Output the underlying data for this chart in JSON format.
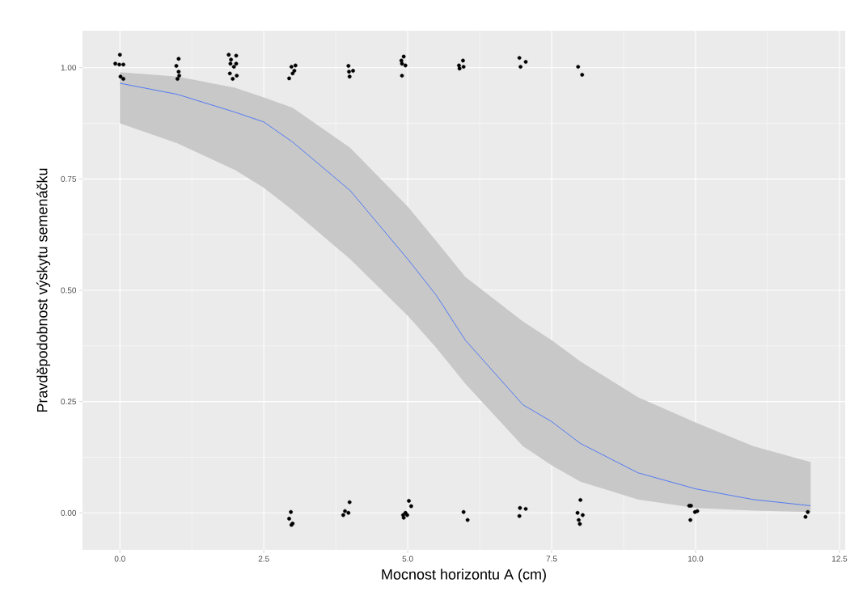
{
  "chart_data": {
    "type": "scatter",
    "xlabel": "Mocnost horizontu A (cm)",
    "ylabel": "Pravděpodobnost výskytu semenáčku",
    "xlim": [
      -0.65,
      12.6
    ],
    "ylim": [
      -0.083,
      1.083
    ],
    "xticks": [
      {
        "value": 0,
        "label": "0.0"
      },
      {
        "value": 2.5,
        "label": "2.5"
      },
      {
        "value": 5,
        "label": "5.0"
      },
      {
        "value": 7.5,
        "label": "7.5"
      },
      {
        "value": 10,
        "label": "10.0"
      },
      {
        "value": 12.5,
        "label": "12.5"
      }
    ],
    "yticks": [
      {
        "value": 0,
        "label": "0.00"
      },
      {
        "value": 0.25,
        "label": "0.25"
      },
      {
        "value": 0.5,
        "label": "0.50"
      },
      {
        "value": 0.75,
        "label": "0.75"
      },
      {
        "value": 1,
        "label": "1.00"
      }
    ],
    "grid": true,
    "series": [
      {
        "type": "line",
        "color": "#3366ff",
        "marker": "none",
        "x": [
          0,
          1,
          2,
          2.5,
          3,
          4,
          5,
          5.5,
          6,
          7,
          7.5,
          8,
          9,
          10,
          11,
          12
        ],
        "values": [
          0.965,
          0.94,
          0.9,
          0.878,
          0.833,
          0.724,
          0.57,
          0.488,
          0.388,
          0.243,
          0.205,
          0.156,
          0.09,
          0.054,
          0.03,
          0.016
        ],
        "lower": [
          0.875,
          0.83,
          0.77,
          0.73,
          0.68,
          0.57,
          0.443,
          0.37,
          0.29,
          0.15,
          0.107,
          0.07,
          0.03,
          0.011,
          0.005,
          0.002
        ],
        "upper": [
          0.99,
          0.98,
          0.955,
          0.933,
          0.91,
          0.82,
          0.688,
          0.61,
          0.53,
          0.43,
          0.388,
          0.34,
          0.26,
          0.203,
          0.15,
          0.114
        ]
      },
      {
        "color": "#000000",
        "marker": "circle",
        "x": [
          0.0,
          -0.08,
          -0.01,
          0.06,
          0.01,
          0.06,
          1.02,
          0.98,
          1.02,
          1.0,
          1.03,
          1.89,
          2.02,
          1.93,
          1.92,
          2.02,
          1.98,
          1.91,
          2.03,
          1.96,
          3.05,
          2.98,
          3.03,
          3.0,
          2.94,
          3.97,
          4.05,
          3.98,
          3.99,
          4.93,
          4.89,
          4.9,
          4.96,
          4.9,
          5.96,
          5.89,
          5.97,
          5.9,
          6.94,
          7.05,
          6.96,
          7.96,
          8.03,
          2.97,
          2.94,
          3.0,
          2.98,
          3.99,
          3.91,
          3.97,
          3.88,
          5.02,
          5.06,
          4.96,
          4.92,
          4.99,
          4.93,
          5.97,
          6.04,
          6.95,
          7.05,
          6.94,
          8.0,
          7.95,
          8.04,
          7.97,
          7.99,
          9.89,
          9.92,
          9.99,
          10.03,
          9.91,
          11.95,
          11.91
        ],
        "values": [
          1.029,
          1.009,
          1.007,
          1.007,
          0.98,
          0.975,
          1.02,
          1.004,
          0.991,
          0.975,
          0.982,
          1.029,
          1.027,
          1.018,
          1.009,
          1.009,
          1.002,
          0.987,
          0.982,
          0.975,
          1.005,
          1.002,
          0.993,
          0.987,
          0.976,
          1.004,
          0.993,
          0.991,
          0.98,
          1.025,
          1.016,
          1.009,
          1.005,
          0.982,
          1.016,
          1.005,
          1.002,
          0.998,
          1.022,
          1.013,
          1.002,
          1.002,
          0.984,
          0.002,
          -0.013,
          -0.024,
          -0.027,
          0.024,
          0.004,
          0.0,
          -0.005,
          0.027,
          0.015,
          0.0,
          -0.005,
          -0.005,
          -0.011,
          0.002,
          -0.016,
          0.011,
          0.009,
          -0.007,
          0.029,
          0.0,
          -0.005,
          -0.016,
          -0.025,
          0.016,
          0.016,
          0.002,
          0.004,
          -0.016,
          0.002,
          -0.009
        ]
      }
    ]
  }
}
